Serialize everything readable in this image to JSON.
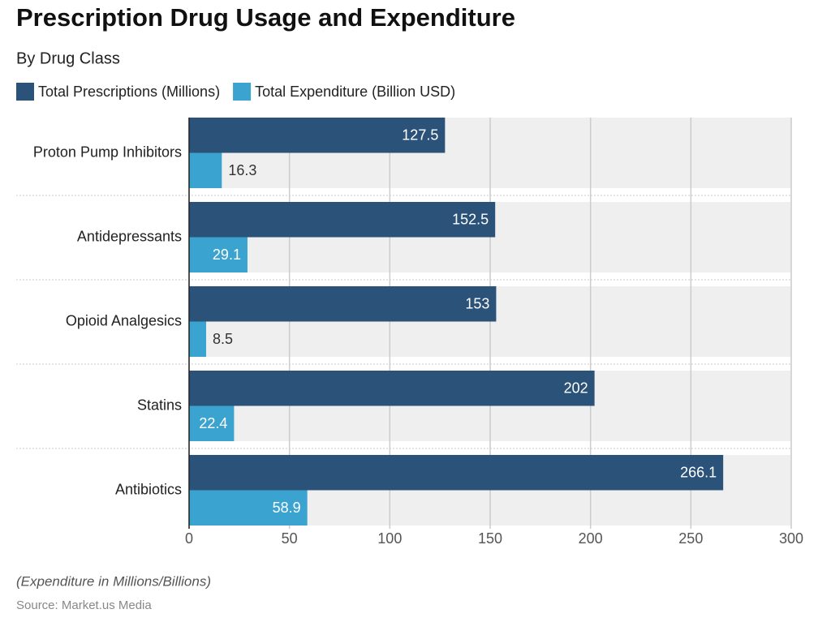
{
  "chart_data": {
    "type": "bar",
    "orientation": "horizontal",
    "title": "Prescription Drug Usage and Expenditure",
    "subtitle": "By Drug Class",
    "categories": [
      "Proton Pump Inhibitors",
      "Antidepressants",
      "Opioid Analgesics",
      "Statins",
      "Antibiotics"
    ],
    "series": [
      {
        "name": "Total Prescriptions (Millions)",
        "color": "#2b5278",
        "values": [
          127.5,
          152.5,
          153,
          202,
          266.1
        ]
      },
      {
        "name": "Total Expenditure (Billion USD)",
        "color": "#3ba3d0",
        "values": [
          16.3,
          29.1,
          8.5,
          22.4,
          58.9
        ]
      }
    ],
    "xlim": [
      0,
      300
    ],
    "xticks": [
      0,
      50,
      100,
      150,
      200,
      250,
      300
    ],
    "grid": true,
    "legend": "top-left",
    "note": "(Expenditure in Millions/Billions)",
    "source": "Source: Market.us Media"
  }
}
